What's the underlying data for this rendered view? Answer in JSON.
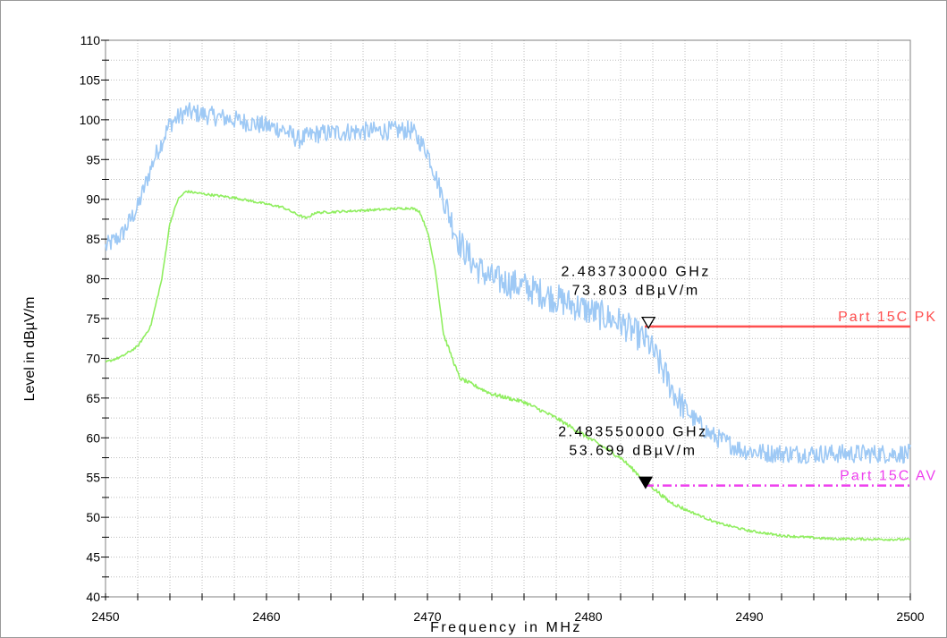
{
  "chart_data": {
    "type": "line",
    "title": "",
    "xlabel": "Frequency in MHz",
    "ylabel": "Level in dBµV/m",
    "xlim": [
      2450,
      2500
    ],
    "ylim": [
      40,
      110
    ],
    "x_ticks": [
      2450,
      2460,
      2470,
      2480,
      2490,
      2500
    ],
    "y_ticks": [
      40,
      45,
      50,
      55,
      60,
      65,
      70,
      75,
      80,
      85,
      90,
      95,
      100,
      105,
      110
    ],
    "grid": true,
    "series": [
      {
        "name": "",
        "color": "#9ec9f5",
        "noise": 1.2,
        "x": [
          2450,
          2451,
          2452,
          2453,
          2454,
          2455,
          2456,
          2458,
          2460,
          2461,
          2462,
          2463,
          2465,
          2467,
          2469,
          2470,
          2471,
          2472,
          2473,
          2474,
          2476,
          2478,
          2480,
          2482,
          2483.7,
          2484.5,
          2485.5,
          2486.5,
          2487.5,
          2488.5,
          2489.5,
          2491,
          2493,
          2495,
          2497,
          2500
        ],
        "y": [
          84,
          85.5,
          89,
          95,
          99.5,
          101,
          100.7,
          100,
          99.2,
          98.8,
          97.5,
          98.2,
          98.5,
          98.6,
          98.7,
          96,
          90,
          84.5,
          81.5,
          80,
          79,
          77.5,
          76,
          74.5,
          72,
          69,
          65,
          62.5,
          60.5,
          59.5,
          58.5,
          58.1,
          58,
          58,
          58,
          58
        ]
      },
      {
        "name": "",
        "color": "#90ee60",
        "noise": 0.15,
        "x": [
          2450,
          2451,
          2452,
          2452.8,
          2453.5,
          2454,
          2454.5,
          2455,
          2456,
          2458,
          2460,
          2461,
          2462,
          2462.5,
          2463,
          2465,
          2467,
          2469,
          2469.5,
          2470,
          2470.5,
          2471,
          2472,
          2474,
          2476,
          2478,
          2480,
          2482,
          2483.55,
          2485,
          2486,
          2488,
          2490,
          2492,
          2495,
          2500
        ],
        "y": [
          69.5,
          70.2,
          71.5,
          74,
          80,
          87,
          90,
          91,
          90.7,
          90.2,
          89.4,
          89,
          88,
          87.6,
          88.3,
          88.5,
          88.7,
          88.9,
          88.5,
          86,
          81,
          73,
          67.5,
          65.5,
          64.5,
          62.5,
          60,
          57.5,
          54.5,
          52,
          51,
          49.3,
          48.3,
          47.7,
          47.3,
          47.2
        ]
      }
    ],
    "limit_lines": [
      {
        "label": "Part 15C PK",
        "value": 74,
        "x_start": 2483.5,
        "x_end": 2500,
        "color": "#ff5050",
        "style": "solid"
      },
      {
        "label": "Part 15C AV",
        "value": 54,
        "x_start": 2483.5,
        "x_end": 2500,
        "color": "#ee40ee",
        "style": "dashdot"
      }
    ],
    "markers": [
      {
        "x": 2483.73,
        "y": 73.803,
        "filled": false,
        "line1": "2.483730000 GHz",
        "line2": "73.803 dBµV/m"
      },
      {
        "x": 2483.55,
        "y": 53.699,
        "filled": true,
        "line1": "2.483550000 GHz",
        "line2": "53.699 dBµV/m"
      }
    ]
  }
}
